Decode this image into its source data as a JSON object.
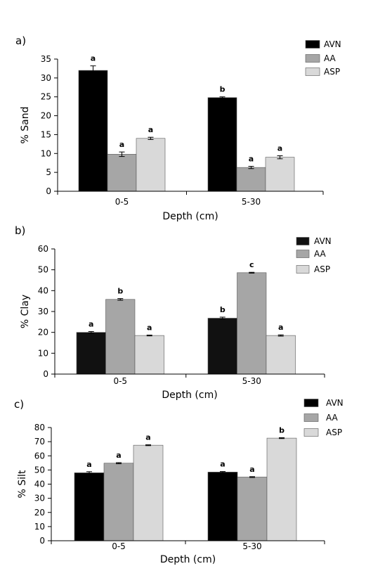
{
  "chart_data": [
    {
      "type": "bar",
      "panel_label": "a)",
      "categories": [
        "0-5",
        "5-30"
      ],
      "xlabel": "Depth (cm)",
      "ylabel": "% Sand",
      "ylim": [
        0,
        35
      ],
      "yticks": [
        0,
        5,
        10,
        15,
        20,
        25,
        30,
        35
      ],
      "legend_position": "top-right",
      "series": [
        {
          "name": "AVN",
          "color": "#000000",
          "values": [
            32.0,
            24.8
          ],
          "errors": [
            1.2,
            0.2
          ],
          "letters": [
            "a",
            "b"
          ]
        },
        {
          "name": "AA",
          "color": "#a6a6a6",
          "values": [
            9.8,
            6.3
          ],
          "errors": [
            0.6,
            0.3
          ],
          "letters": [
            "a",
            "a"
          ]
        },
        {
          "name": "ASP",
          "color": "#d9d9d9",
          "values": [
            14.0,
            9.0
          ],
          "errors": [
            0.3,
            0.4
          ],
          "letters": [
            "a",
            "a"
          ]
        }
      ]
    },
    {
      "type": "bar",
      "panel_label": "b)",
      "categories": [
        "0-5",
        "5-30"
      ],
      "xlabel": "Depth (cm)",
      "ylabel": "% Clay",
      "ylim": [
        0,
        60
      ],
      "yticks": [
        0,
        10,
        20,
        30,
        40,
        50,
        60
      ],
      "legend_position": "top-right",
      "series": [
        {
          "name": "AVN",
          "color": "#111111",
          "values": [
            20.0,
            26.8
          ],
          "errors": [
            0.4,
            0.5
          ],
          "letters": [
            "a",
            "b"
          ]
        },
        {
          "name": "AA",
          "color": "#a6a6a6",
          "values": [
            35.8,
            48.6
          ],
          "errors": [
            0.4,
            0.2
          ],
          "letters": [
            "b",
            "c"
          ]
        },
        {
          "name": "ASP",
          "color": "#d9d9d9",
          "values": [
            18.5,
            18.5
          ],
          "errors": [
            0.2,
            0.3
          ],
          "letters": [
            "a",
            "a"
          ]
        }
      ]
    },
    {
      "type": "bar",
      "panel_label": "c)",
      "categories": [
        "0-5",
        "5-30"
      ],
      "xlabel": "Depth (cm)",
      "ylabel": "% Silt",
      "ylim": [
        0,
        80
      ],
      "yticks": [
        0,
        10,
        20,
        30,
        40,
        50,
        60,
        70,
        80
      ],
      "legend_position": "top-right",
      "series": [
        {
          "name": "AVN",
          "color": "#000000",
          "values": [
            48.0,
            48.5
          ],
          "errors": [
            0.8,
            0.4
          ],
          "letters": [
            "a",
            "a"
          ]
        },
        {
          "name": "AA",
          "color": "#a6a6a6",
          "values": [
            54.8,
            45.0
          ],
          "errors": [
            0.4,
            0.3
          ],
          "letters": [
            "a",
            "a"
          ]
        },
        {
          "name": "ASP",
          "color": "#d9d9d9",
          "values": [
            67.5,
            72.5
          ],
          "errors": [
            0.3,
            0.3
          ],
          "letters": [
            "a",
            "b"
          ]
        }
      ]
    }
  ]
}
